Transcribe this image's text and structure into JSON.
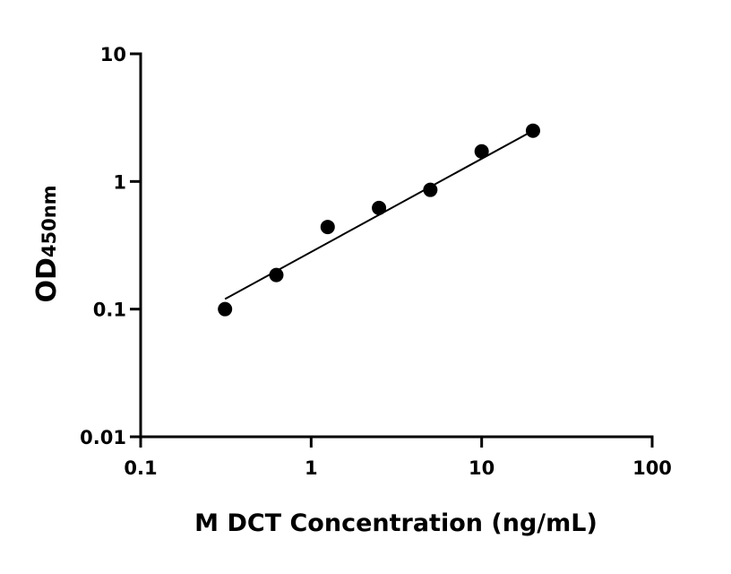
{
  "chart_data": {
    "type": "scatter",
    "x_label": "M DCT Concentration (ng/mL)",
    "y_label": "OD",
    "y_label_sub": "450nm",
    "x": [
      0.3125,
      0.625,
      1.25,
      2.5,
      5,
      10,
      20
    ],
    "series": [
      {
        "color": "#000000",
        "values": [
          0.1,
          0.185,
          0.44,
          0.62,
          0.86,
          1.72,
          2.5
        ]
      }
    ],
    "fit": {
      "x": [
        0.3125,
        20
      ],
      "y": [
        0.12,
        2.5
      ]
    },
    "xscale": "log",
    "yscale": "log",
    "xlim": [
      0.1,
      100
    ],
    "ylim": [
      0.01,
      10
    ],
    "xticks": [
      0.1,
      1,
      10,
      100
    ],
    "yticks": [
      0.01,
      0.1,
      1,
      10
    ]
  }
}
